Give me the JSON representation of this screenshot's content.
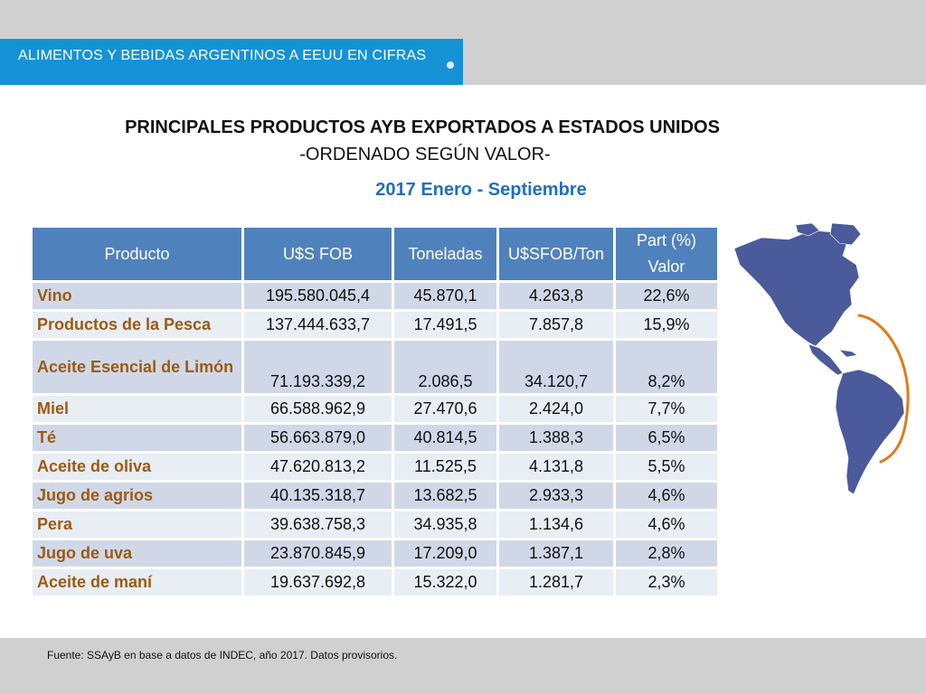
{
  "header": {
    "tab_label": "ALIMENTOS Y BEBIDAS ARGENTINOS A EEUU EN CIFRAS"
  },
  "title": {
    "main": "PRINCIPALES PRODUCTOS AYB EXPORTADOS A ESTADOS UNIDOS",
    "sub": "-ORDENADO SEGÚN VALOR-",
    "period": "2017 Enero - Septiembre"
  },
  "table": {
    "headers": {
      "producto": "Producto",
      "fob": "U$S FOB",
      "toneladas": "Toneladas",
      "fob_ton": "U$SFOB/Ton",
      "part_line1": "Part (%)",
      "part_line2": "Valor"
    },
    "rows": [
      {
        "producto": "Vino",
        "fob": "195.580.045,4",
        "toneladas": "45.870,1",
        "fob_ton": "4.263,8",
        "part": "22,6%"
      },
      {
        "producto": "Productos de la Pesca",
        "fob": "137.444.633,7",
        "toneladas": "17.491,5",
        "fob_ton": "7.857,8",
        "part": "15,9%"
      },
      {
        "producto": "Aceite Esencial de Limón",
        "fob": "71.193.339,2",
        "toneladas": "2.086,5",
        "fob_ton": "34.120,7",
        "part": "8,2%"
      },
      {
        "producto": "Miel",
        "fob": "66.588.962,9",
        "toneladas": "27.470,6",
        "fob_ton": "2.424,0",
        "part": "7,7%"
      },
      {
        "producto": "Té",
        "fob": "56.663.879,0",
        "toneladas": "40.814,5",
        "fob_ton": "1.388,3",
        "part": "6,5%"
      },
      {
        "producto": "Aceite de oliva",
        "fob": "47.620.813,2",
        "toneladas": "11.525,5",
        "fob_ton": "4.131,8",
        "part": "5,5%"
      },
      {
        "producto": "Jugo de agrios",
        "fob": "40.135.318,7",
        "toneladas": "13.682,5",
        "fob_ton": "2.933,3",
        "part": "4,6%"
      },
      {
        "producto": "Pera",
        "fob": "39.638.758,3",
        "toneladas": "34.935,8",
        "fob_ton": "1.134,6",
        "part": "4,6%"
      },
      {
        "producto": "Jugo de uva",
        "fob": "23.870.845,9",
        "toneladas": "17.209,0",
        "fob_ton": "1.387,1",
        "part": "2,8%"
      },
      {
        "producto": "Aceite de maní",
        "fob": "19.637.692,8",
        "toneladas": "15.322,0",
        "fob_ton": "1.281,7",
        "part": "2,3%"
      }
    ]
  },
  "map": {
    "icon": "americas-map-icon",
    "land_color": "#4a5a9a",
    "arc_color": "#e07b1a"
  },
  "footer": {
    "source": "Fuente: SSAyB en base a datos de INDEC, año 2017. Datos provisorios."
  },
  "colors": {
    "header_blue": "#1592d6",
    "table_header": "#4f81bd",
    "row_odd": "#d0d8e8",
    "row_even": "#e9edf4",
    "product_text": "#9c5a12",
    "period_text": "#1f6fc0",
    "band_gray": "#d0d0d0"
  }
}
